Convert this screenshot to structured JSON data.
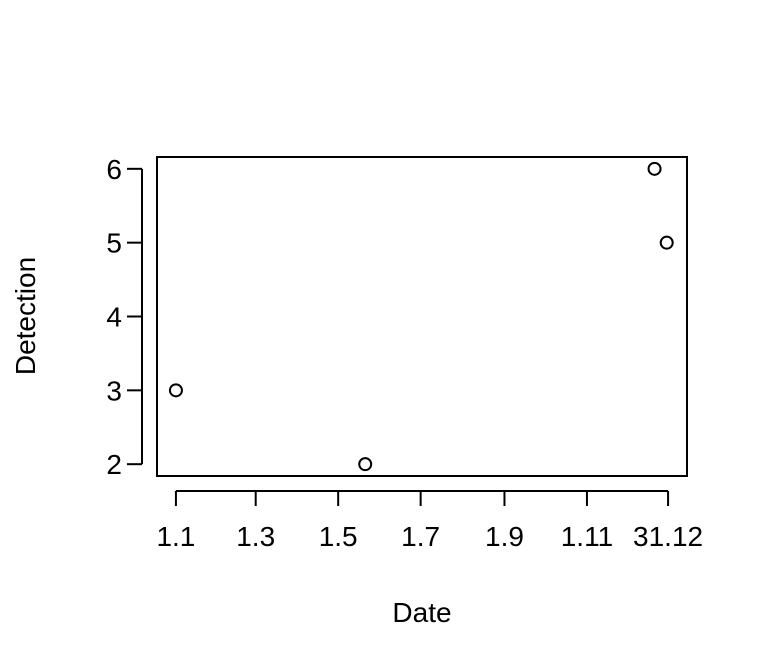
{
  "chart_data": {
    "type": "scatter",
    "title": "",
    "xlabel": "Date",
    "ylabel": "Detection",
    "x_ticks": [
      {
        "value": 0,
        "label": "1.1"
      },
      {
        "value": 59,
        "label": "1.3"
      },
      {
        "value": 120,
        "label": "1.5"
      },
      {
        "value": 181,
        "label": "1.7"
      },
      {
        "value": 243,
        "label": "1.9"
      },
      {
        "value": 304,
        "label": "1.11"
      },
      {
        "value": 364,
        "label": "31.12"
      }
    ],
    "y_ticks": [
      2,
      3,
      4,
      5,
      6
    ],
    "xlim": [
      -14,
      378
    ],
    "ylim": [
      1.84,
      6.16
    ],
    "points": [
      {
        "x": 0,
        "y": 3
      },
      {
        "x": 140,
        "y": 2
      },
      {
        "x": 354,
        "y": 6
      },
      {
        "x": 363,
        "y": 5
      }
    ],
    "grid": false,
    "legend": "none"
  }
}
